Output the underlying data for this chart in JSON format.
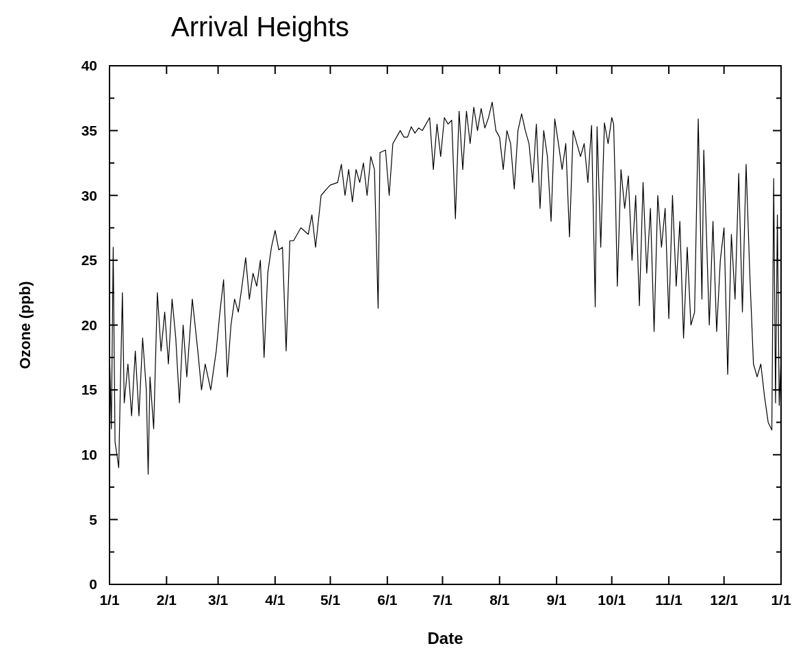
{
  "chart_data": {
    "type": "line",
    "title": "Arrival Heights",
    "xlabel": "Date",
    "ylabel": "Ozone (ppb)",
    "xlim": [
      "--01-01",
      "--12-31T23:59"
    ],
    "ylim": [
      0,
      40
    ],
    "xticks": [
      {
        "value": "--01-01",
        "label": "1/1"
      },
      {
        "value": "--02-01",
        "label": "2/1"
      },
      {
        "value": "--03-01",
        "label": "3/1"
      },
      {
        "value": "--04-01",
        "label": "4/1"
      },
      {
        "value": "--05-01",
        "label": "5/1"
      },
      {
        "value": "--06-01",
        "label": "6/1"
      },
      {
        "value": "--07-01",
        "label": "7/1"
      },
      {
        "value": "--08-01",
        "label": "8/1"
      },
      {
        "value": "--09-01",
        "label": "9/1"
      },
      {
        "value": "--10-01",
        "label": "10/1"
      },
      {
        "value": "--11-01",
        "label": "11/1"
      },
      {
        "value": "--12-01",
        "label": "12/1"
      },
      {
        "value": "--12-31T23:59",
        "label": "1/1"
      }
    ],
    "yticks": [
      0,
      {
        "value": 2.5,
        "label": null
      },
      5,
      {
        "value": 7.5,
        "label": null
      },
      10,
      {
        "value": 12.5,
        "label": null
      },
      15,
      {
        "value": 17.5,
        "label": null
      },
      20,
      {
        "value": 22.5,
        "label": null
      },
      25,
      {
        "value": 27.5,
        "label": null
      },
      30,
      {
        "value": 32.5,
        "label": null
      },
      35,
      {
        "value": 37.5,
        "label": null
      },
      40
    ],
    "grid": false,
    "marker": "none",
    "line_style": "solid",
    "series": [
      {
        "color": "#000000",
        "x": [
          "--01-01",
          "--01-02",
          "--01-03",
          "--01-04",
          "--01-05",
          "--01-06",
          "--01-07",
          "--01-08",
          "--01-09",
          "--01-11",
          "--01-13",
          "--01-15",
          "--01-17",
          "--01-19",
          "--01-21",
          "--01-22",
          "--01-23",
          "--01-25",
          "--01-27",
          "--01-29",
          "--01-31",
          "--02-02",
          "--02-04",
          "--02-06",
          "--02-08",
          "--02-10",
          "--02-12",
          "--02-15",
          "--02-18",
          "--02-20",
          "--02-22",
          "--02-25",
          "--02-28",
          "--03-02",
          "--03-04",
          "--03-06",
          "--03-08",
          "--03-10",
          "--03-12",
          "--03-14",
          "--03-16",
          "--03-18",
          "--03-20",
          "--03-22",
          "--03-24",
          "--03-26",
          "--03-28",
          "--03-30",
          "--04-01",
          "--04-03",
          "--04-05",
          "--04-07",
          "--04-09",
          "--04-11",
          "--04-15",
          "--04-19",
          "--04-21",
          "--04-23",
          "--04-26",
          "--04-29",
          "--05-01",
          "--05-05",
          "--05-07",
          "--05-09",
          "--05-11",
          "--05-13",
          "--05-15",
          "--05-17",
          "--05-19",
          "--05-21",
          "--05-23",
          "--05-25",
          "--05-27",
          "--05-28",
          "--05-31",
          "--06-02",
          "--06-04",
          "--06-06",
          "--06-08",
          "--06-10",
          "--06-12",
          "--06-14",
          "--06-16",
          "--06-18",
          "--06-20",
          "--06-22",
          "--06-24",
          "--06-26",
          "--06-28",
          "--06-30",
          "--07-02",
          "--07-04",
          "--07-06",
          "--07-08",
          "--07-10",
          "--07-12",
          "--07-14",
          "--07-16",
          "--07-18",
          "--07-20",
          "--07-22",
          "--07-24",
          "--07-26",
          "--07-28",
          "--07-30",
          "--08-01",
          "--08-03",
          "--08-05",
          "--08-07",
          "--08-09",
          "--08-11",
          "--08-13",
          "--08-15",
          "--08-17",
          "--08-19",
          "--08-21",
          "--08-23",
          "--08-25",
          "--08-27",
          "--08-29",
          "--08-31",
          "--09-02",
          "--09-04",
          "--09-06",
          "--09-08",
          "--09-10",
          "--09-12",
          "--09-14",
          "--09-16",
          "--09-18",
          "--09-20",
          "--09-22",
          "--09-23",
          "--09-25",
          "--09-27",
          "--09-29",
          "--10-01",
          "--10-02",
          "--10-03",
          "--10-04",
          "--10-06",
          "--10-08",
          "--10-10",
          "--10-12",
          "--10-14",
          "--10-16",
          "--10-18",
          "--10-20",
          "--10-22",
          "--10-24",
          "--10-26",
          "--10-28",
          "--10-30",
          "--11-01",
          "--11-03",
          "--11-05",
          "--11-07",
          "--11-09",
          "--11-11",
          "--11-13",
          "--11-15",
          "--11-17",
          "--11-19",
          "--11-20",
          "--11-23",
          "--11-25",
          "--11-27",
          "--11-29",
          "--12-01",
          "--12-03",
          "--12-05",
          "--12-07",
          "--12-09",
          "--12-11",
          "--12-13",
          "--12-15",
          "--12-17",
          "--12-19",
          "--12-21",
          "--12-23",
          "--12-25",
          "--12-27",
          "--12-28",
          "--12-29",
          "--12-30",
          "--12-31",
          "--12-31T23:59"
        ],
        "values": [
          18,
          12,
          26,
          11,
          10,
          9,
          16,
          22.5,
          14,
          17,
          13,
          18,
          13,
          19,
          15,
          8.5,
          16,
          12,
          22.5,
          18,
          21,
          17,
          22,
          19,
          14,
          20,
          16,
          22,
          18,
          15,
          17,
          15,
          18,
          21,
          23.5,
          16,
          20,
          22,
          21,
          23,
          25.2,
          22,
          24,
          23,
          25,
          17.5,
          24,
          26,
          27.3,
          25.8,
          26,
          18,
          26.5,
          26.5,
          27.5,
          27,
          28.5,
          26,
          30,
          30.5,
          30.8,
          31,
          32.4,
          30,
          32,
          29.5,
          32,
          31,
          32.5,
          30,
          33,
          32,
          21.3,
          33.3,
          33.5,
          30,
          34,
          34.5,
          35,
          34.5,
          34.5,
          35.3,
          34.8,
          35.2,
          35,
          35.5,
          36,
          32,
          35.5,
          33,
          36,
          35.5,
          35.8,
          28.2,
          36.5,
          32,
          36.5,
          34,
          36.8,
          35,
          36.7,
          35.2,
          36,
          37.2,
          35,
          34.5,
          32,
          35,
          34,
          30.5,
          35,
          36.3,
          35,
          34,
          31,
          35.5,
          29,
          35,
          33,
          28,
          35.9,
          34,
          32,
          34,
          26.8,
          35,
          34,
          33,
          34,
          31,
          35.4,
          21.4,
          35.3,
          26,
          35.6,
          34,
          36,
          35.5,
          30,
          23,
          32,
          29,
          31.5,
          25,
          30,
          21.5,
          31,
          24,
          29,
          19.5,
          30,
          26,
          29,
          20.5,
          30,
          23,
          28,
          19,
          26,
          20,
          21,
          35.9,
          22,
          33.5,
          20,
          28,
          19.5,
          25,
          27.5,
          16.2,
          27,
          22,
          31.7,
          21,
          32.4,
          24,
          17,
          16,
          17,
          14.5,
          12.5,
          11.9,
          31.3,
          14,
          28.5,
          13.8,
          17.5
        ]
      }
    ]
  }
}
